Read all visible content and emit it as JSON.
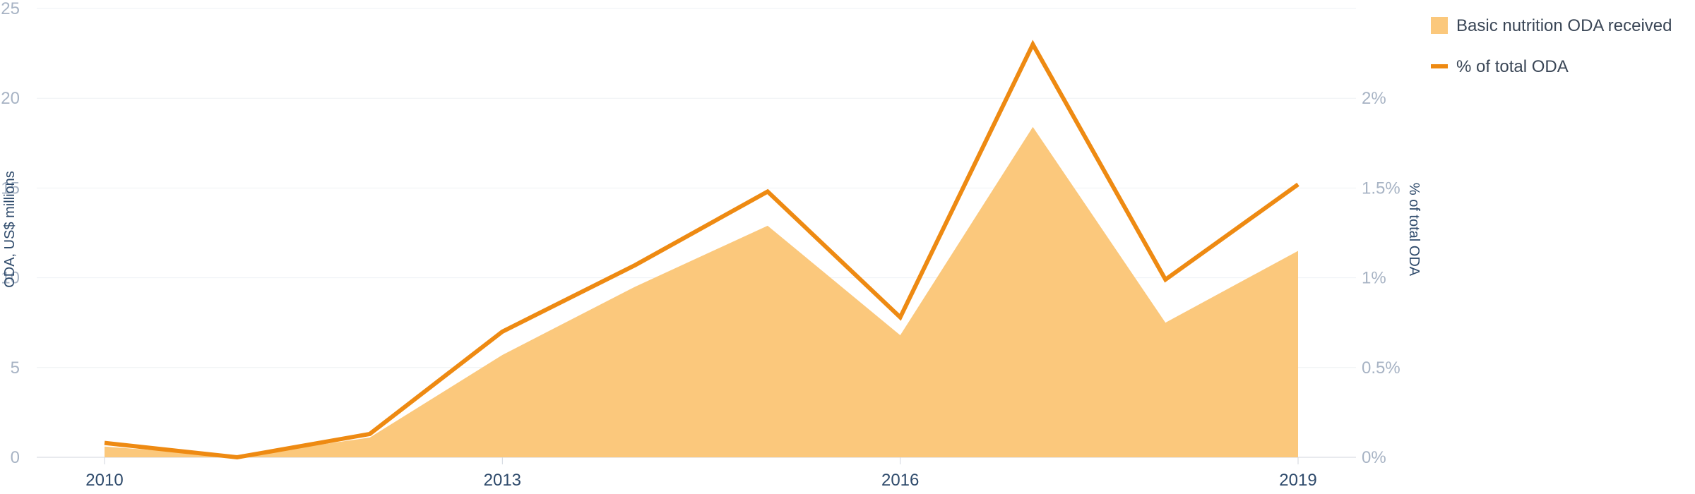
{
  "chart_data": {
    "type": "area",
    "x": [
      2010,
      2011,
      2012,
      2013,
      2014,
      2015,
      2016,
      2017,
      2018,
      2019
    ],
    "x_ticks": [
      "2010",
      "2013",
      "2016",
      "2019"
    ],
    "ylabel": "ODA, US$ millions",
    "ylabel_right": "% of total ODA",
    "ylim": [
      0,
      25
    ],
    "ylim_right": [
      0,
      2.5
    ],
    "y_ticks_left": [
      "0",
      "5",
      "10",
      "15",
      "20",
      "25"
    ],
    "y_ticks_right": [
      "0%",
      "0.5%",
      "1%",
      "1.5%",
      "2%"
    ],
    "grid": true,
    "legend_position": "top-right",
    "series": [
      {
        "name": "Basic nutrition ODA received",
        "type": "area",
        "axis": "left",
        "color": "#fbc87c",
        "values": [
          0.6,
          0.05,
          1.1,
          5.7,
          9.5,
          12.9,
          6.8,
          18.4,
          7.5,
          11.5
        ]
      },
      {
        "name": "% of total ODA",
        "type": "line",
        "axis": "right",
        "color": "#ee8a12",
        "values": [
          0.08,
          0.0,
          0.13,
          0.7,
          1.07,
          1.48,
          0.78,
          2.3,
          0.99,
          1.52
        ]
      }
    ]
  }
}
